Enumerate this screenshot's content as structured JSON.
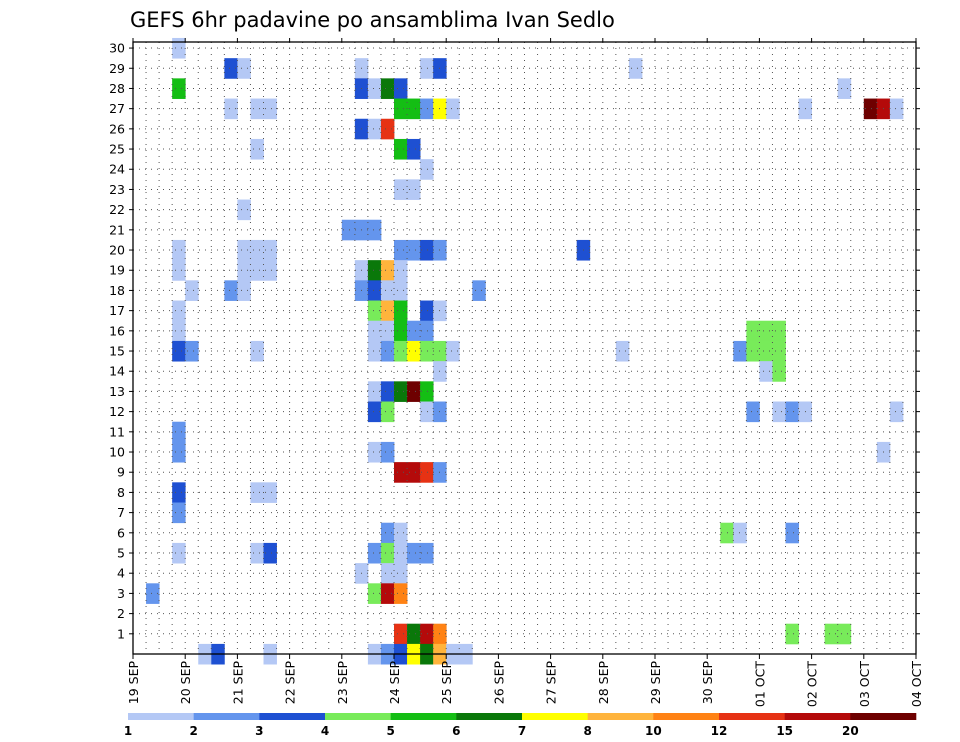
{
  "chart_data": {
    "type": "heatmap",
    "title": "GEFS 6hr padavine po ansamblima Ivan Sedlo",
    "x_tick_labels": [
      "19 SEP",
      "20 SEP",
      "21 SEP",
      "22 SEP",
      "23 SEP",
      "24 SEP",
      "25 SEP",
      "26 SEP",
      "27 SEP",
      "28 SEP",
      "29 SEP",
      "30 SEP",
      "01 OCT",
      "02 OCT",
      "03 OCT",
      "04 OCT"
    ],
    "y_tick_labels": [
      "1",
      "2",
      "3",
      "4",
      "5",
      "6",
      "7",
      "8",
      "9",
      "10",
      "11",
      "12",
      "13",
      "14",
      "15",
      "16",
      "17",
      "18",
      "19",
      "20",
      "21",
      "22",
      "23",
      "24",
      "25",
      "26",
      "27",
      "28",
      "29",
      "30"
    ],
    "x_range_steps": [
      0,
      60
    ],
    "y_range": [
      0,
      30
    ],
    "grid": true,
    "colorbar": {
      "levels": [
        "1",
        "2",
        "3",
        "4",
        "5",
        "6",
        "7",
        "8",
        "10",
        "12",
        "15",
        "20"
      ],
      "colors": [
        "#b4c8f5",
        "#6495ed",
        "#1e50d2",
        "#78eb5a",
        "#14be14",
        "#0a780a",
        "#ffff00",
        "#ffb43c",
        "#ff8214",
        "#e63214",
        "#b40a0a",
        "#6e0000"
      ]
    },
    "cells": [
      {
        "x": 3,
        "m": 30,
        "c": 1
      },
      {
        "x": 7,
        "m": 29,
        "c": 3
      },
      {
        "x": 8,
        "m": 29,
        "c": 1
      },
      {
        "x": 17,
        "m": 29,
        "c": 1
      },
      {
        "x": 22,
        "m": 29,
        "c": 1
      },
      {
        "x": 23,
        "m": 29,
        "c": 3
      },
      {
        "x": 38,
        "m": 29,
        "c": 1
      },
      {
        "x": 3,
        "m": 28,
        "c": 5
      },
      {
        "x": 17,
        "m": 28,
        "c": 3
      },
      {
        "x": 18,
        "m": 28,
        "c": 1
      },
      {
        "x": 19,
        "m": 28,
        "c": 6
      },
      {
        "x": 20,
        "m": 28,
        "c": 3
      },
      {
        "x": 54,
        "m": 28,
        "c": 1
      },
      {
        "x": 7,
        "m": 27,
        "c": 1
      },
      {
        "x": 9,
        "m": 27,
        "c": 1
      },
      {
        "x": 10,
        "m": 27,
        "c": 1
      },
      {
        "x": 20,
        "m": 27,
        "c": 5
      },
      {
        "x": 21,
        "m": 27,
        "c": 5
      },
      {
        "x": 22,
        "m": 27,
        "c": 2
      },
      {
        "x": 23,
        "m": 27,
        "c": 7
      },
      {
        "x": 24,
        "m": 27,
        "c": 1
      },
      {
        "x": 51,
        "m": 27,
        "c": 1
      },
      {
        "x": 56,
        "m": 27,
        "c": 12
      },
      {
        "x": 57,
        "m": 27,
        "c": 11
      },
      {
        "x": 58,
        "m": 27,
        "c": 1
      },
      {
        "x": 17,
        "m": 26,
        "c": 3
      },
      {
        "x": 18,
        "m": 26,
        "c": 1
      },
      {
        "x": 19,
        "m": 26,
        "c": 10
      },
      {
        "x": 9,
        "m": 25,
        "c": 1
      },
      {
        "x": 20,
        "m": 25,
        "c": 5
      },
      {
        "x": 21,
        "m": 25,
        "c": 3
      },
      {
        "x": 22,
        "m": 24,
        "c": 1
      },
      {
        "x": 20,
        "m": 23,
        "c": 1
      },
      {
        "x": 21,
        "m": 23,
        "c": 1
      },
      {
        "x": 8,
        "m": 22,
        "c": 1
      },
      {
        "x": 16,
        "m": 21,
        "c": 2
      },
      {
        "x": 17,
        "m": 21,
        "c": 2
      },
      {
        "x": 18,
        "m": 21,
        "c": 2
      },
      {
        "x": 3,
        "m": 20,
        "c": 1
      },
      {
        "x": 8,
        "m": 20,
        "c": 1
      },
      {
        "x": 9,
        "m": 20,
        "c": 1
      },
      {
        "x": 10,
        "m": 20,
        "c": 1
      },
      {
        "x": 20,
        "m": 20,
        "c": 2
      },
      {
        "x": 21,
        "m": 20,
        "c": 2
      },
      {
        "x": 22,
        "m": 20,
        "c": 3
      },
      {
        "x": 23,
        "m": 20,
        "c": 2
      },
      {
        "x": 34,
        "m": 20,
        "c": 3
      },
      {
        "x": 3,
        "m": 19,
        "c": 1
      },
      {
        "x": 8,
        "m": 19,
        "c": 1
      },
      {
        "x": 9,
        "m": 19,
        "c": 1
      },
      {
        "x": 10,
        "m": 19,
        "c": 1
      },
      {
        "x": 17,
        "m": 19,
        "c": 1
      },
      {
        "x": 18,
        "m": 19,
        "c": 6
      },
      {
        "x": 19,
        "m": 19,
        "c": 8
      },
      {
        "x": 20,
        "m": 19,
        "c": 1
      },
      {
        "x": 4,
        "m": 18,
        "c": 1
      },
      {
        "x": 7,
        "m": 18,
        "c": 2
      },
      {
        "x": 8,
        "m": 18,
        "c": 1
      },
      {
        "x": 17,
        "m": 18,
        "c": 2
      },
      {
        "x": 18,
        "m": 18,
        "c": 3
      },
      {
        "x": 19,
        "m": 18,
        "c": 1
      },
      {
        "x": 20,
        "m": 18,
        "c": 1
      },
      {
        "x": 26,
        "m": 18,
        "c": 2
      },
      {
        "x": 3,
        "m": 17,
        "c": 1
      },
      {
        "x": 18,
        "m": 17,
        "c": 4
      },
      {
        "x": 19,
        "m": 17,
        "c": 8
      },
      {
        "x": 20,
        "m": 17,
        "c": 5
      },
      {
        "x": 22,
        "m": 17,
        "c": 3
      },
      {
        "x": 23,
        "m": 17,
        "c": 1
      },
      {
        "x": 3,
        "m": 16,
        "c": 1
      },
      {
        "x": 18,
        "m": 16,
        "c": 1
      },
      {
        "x": 19,
        "m": 16,
        "c": 1
      },
      {
        "x": 20,
        "m": 16,
        "c": 5
      },
      {
        "x": 21,
        "m": 16,
        "c": 2
      },
      {
        "x": 22,
        "m": 16,
        "c": 2
      },
      {
        "x": 47,
        "m": 16,
        "c": 4
      },
      {
        "x": 48,
        "m": 16,
        "c": 4
      },
      {
        "x": 49,
        "m": 16,
        "c": 4
      },
      {
        "x": 3,
        "m": 15,
        "c": 3
      },
      {
        "x": 4,
        "m": 15,
        "c": 2
      },
      {
        "x": 9,
        "m": 15,
        "c": 1
      },
      {
        "x": 18,
        "m": 15,
        "c": 1
      },
      {
        "x": 19,
        "m": 15,
        "c": 2
      },
      {
        "x": 20,
        "m": 15,
        "c": 4
      },
      {
        "x": 21,
        "m": 15,
        "c": 7
      },
      {
        "x": 22,
        "m": 15,
        "c": 4
      },
      {
        "x": 23,
        "m": 15,
        "c": 4
      },
      {
        "x": 24,
        "m": 15,
        "c": 1
      },
      {
        "x": 37,
        "m": 15,
        "c": 1
      },
      {
        "x": 46,
        "m": 15,
        "c": 2
      },
      {
        "x": 47,
        "m": 15,
        "c": 4
      },
      {
        "x": 48,
        "m": 15,
        "c": 4
      },
      {
        "x": 49,
        "m": 15,
        "c": 4
      },
      {
        "x": 23,
        "m": 14,
        "c": 1
      },
      {
        "x": 48,
        "m": 14,
        "c": 1
      },
      {
        "x": 49,
        "m": 14,
        "c": 4
      },
      {
        "x": 18,
        "m": 13,
        "c": 1
      },
      {
        "x": 19,
        "m": 13,
        "c": 3
      },
      {
        "x": 20,
        "m": 13,
        "c": 6
      },
      {
        "x": 21,
        "m": 13,
        "c": 12
      },
      {
        "x": 22,
        "m": 13,
        "c": 5
      },
      {
        "x": 18,
        "m": 12,
        "c": 3
      },
      {
        "x": 19,
        "m": 12,
        "c": 4
      },
      {
        "x": 22,
        "m": 12,
        "c": 1
      },
      {
        "x": 23,
        "m": 12,
        "c": 2
      },
      {
        "x": 47,
        "m": 12,
        "c": 2
      },
      {
        "x": 49,
        "m": 12,
        "c": 1
      },
      {
        "x": 50,
        "m": 12,
        "c": 2
      },
      {
        "x": 51,
        "m": 12,
        "c": 1
      },
      {
        "x": 58,
        "m": 12,
        "c": 1
      },
      {
        "x": 3,
        "m": 11,
        "c": 2
      },
      {
        "x": 3,
        "m": 10,
        "c": 2
      },
      {
        "x": 18,
        "m": 10,
        "c": 1
      },
      {
        "x": 19,
        "m": 10,
        "c": 2
      },
      {
        "x": 57,
        "m": 10,
        "c": 1
      },
      {
        "x": 20,
        "m": 9,
        "c": 11
      },
      {
        "x": 21,
        "m": 9,
        "c": 11
      },
      {
        "x": 22,
        "m": 9,
        "c": 10
      },
      {
        "x": 23,
        "m": 9,
        "c": 2
      },
      {
        "x": 3,
        "m": 8,
        "c": 3
      },
      {
        "x": 9,
        "m": 8,
        "c": 1
      },
      {
        "x": 10,
        "m": 8,
        "c": 1
      },
      {
        "x": 3,
        "m": 7,
        "c": 2
      },
      {
        "x": 19,
        "m": 6,
        "c": 2
      },
      {
        "x": 20,
        "m": 6,
        "c": 1
      },
      {
        "x": 45,
        "m": 6,
        "c": 4
      },
      {
        "x": 46,
        "m": 6,
        "c": 1
      },
      {
        "x": 50,
        "m": 6,
        "c": 2
      },
      {
        "x": 3,
        "m": 5,
        "c": 1
      },
      {
        "x": 9,
        "m": 5,
        "c": 1
      },
      {
        "x": 10,
        "m": 5,
        "c": 3
      },
      {
        "x": 18,
        "m": 5,
        "c": 2
      },
      {
        "x": 19,
        "m": 5,
        "c": 4
      },
      {
        "x": 20,
        "m": 5,
        "c": 1
      },
      {
        "x": 21,
        "m": 5,
        "c": 2
      },
      {
        "x": 22,
        "m": 5,
        "c": 2
      },
      {
        "x": 17,
        "m": 4,
        "c": 1
      },
      {
        "x": 19,
        "m": 4,
        "c": 1
      },
      {
        "x": 20,
        "m": 4,
        "c": 1
      },
      {
        "x": 1,
        "m": 3,
        "c": 2
      },
      {
        "x": 18,
        "m": 3,
        "c": 4
      },
      {
        "x": 19,
        "m": 3,
        "c": 11
      },
      {
        "x": 20,
        "m": 3,
        "c": 9
      },
      {
        "x": 20,
        "m": 1,
        "c": 10
      },
      {
        "x": 21,
        "m": 1,
        "c": 6
      },
      {
        "x": 22,
        "m": 1,
        "c": 11
      },
      {
        "x": 23,
        "m": 1,
        "c": 9
      },
      {
        "x": 50,
        "m": 1,
        "c": 4
      },
      {
        "x": 53,
        "m": 1,
        "c": 4
      },
      {
        "x": 54,
        "m": 1,
        "c": 4
      },
      {
        "x": 5,
        "m": 0,
        "c": 1
      },
      {
        "x": 6,
        "m": 0,
        "c": 3
      },
      {
        "x": 10,
        "m": 0,
        "c": 1
      },
      {
        "x": 18,
        "m": 0,
        "c": 1
      },
      {
        "x": 19,
        "m": 0,
        "c": 2
      },
      {
        "x": 20,
        "m": 0,
        "c": 3
      },
      {
        "x": 21,
        "m": 0,
        "c": 7
      },
      {
        "x": 22,
        "m": 0,
        "c": 6
      },
      {
        "x": 23,
        "m": 0,
        "c": 8
      },
      {
        "x": 24,
        "m": 0,
        "c": 1
      },
      {
        "x": 25,
        "m": 0,
        "c": 1
      }
    ]
  }
}
